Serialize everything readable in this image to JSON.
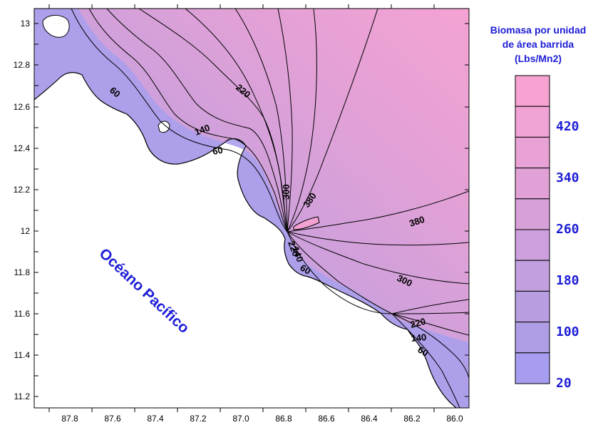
{
  "map": {
    "ocean_label": "Océano Pacífico",
    "x_ticks": [
      "87.8",
      "87.6",
      "87.4",
      "87.2",
      "87.0",
      "86.8",
      "86.6",
      "86.4",
      "86.2",
      "86.0"
    ],
    "y_ticks": [
      "13",
      "12.8",
      "12.6",
      "12.4",
      "12.2",
      "12",
      "11.8",
      "11.6",
      "11.4",
      "11.2"
    ],
    "contour_labels": [
      "60",
      "220",
      "140",
      "60",
      "300",
      "380",
      "380",
      "220",
      "140",
      "60",
      "300",
      "220",
      "140",
      "60"
    ],
    "colors": {
      "low": "#a79ef0",
      "mid": "#d59cd8",
      "high": "#f4a2d3",
      "line": "#000000"
    }
  },
  "legend": {
    "title_lines": [
      "Biomasa por unidad",
      "de área barrida",
      "(Lbs/Mn2)"
    ],
    "values": [
      "420",
      "340",
      "260",
      "180",
      "100",
      "20"
    ],
    "band_colors": [
      "#f7a3d2",
      "#f0a3d4",
      "#e9a2d5",
      "#e1a1d7",
      "#d7a0d9",
      "#cd9fdc",
      "#c29fde",
      "#b89ee1",
      "#ae9de4",
      "#a79df0"
    ]
  }
}
